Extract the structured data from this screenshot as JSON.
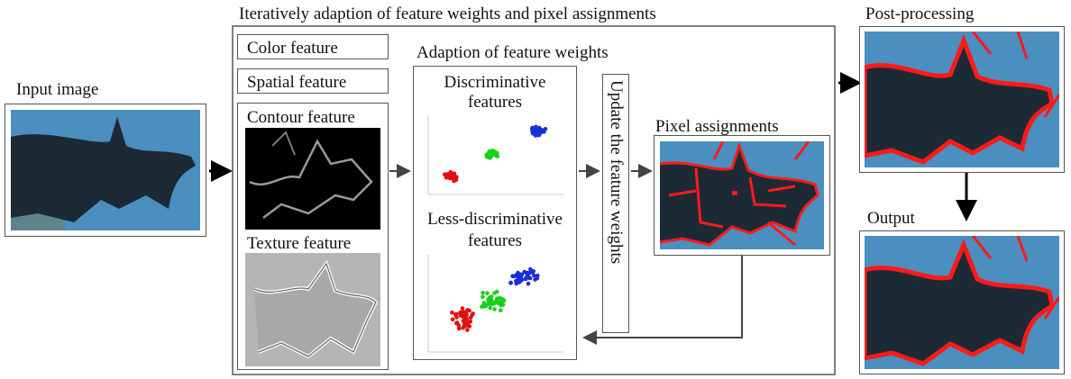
{
  "title": "Iteratively adaption of feature weights and pixel assignments",
  "input_image_label": "Input image",
  "features": {
    "color": "Color feature",
    "spatial": "Spatial feature",
    "contour": "Contour feature",
    "texture": "Texture feature"
  },
  "adaption": {
    "title": "Adaption of feature weights",
    "discriminative": "Discriminative features",
    "less_discriminative": "Less-discriminative features"
  },
  "update_label": "Update the feature weights",
  "pixel_assignments_label": "Pixel assignments",
  "post_processing_label": "Post-processing",
  "output_label": "Output",
  "colors": {
    "sky": "#4a8fbf",
    "object": "#1b2a35",
    "boundary": "#ff1a1a",
    "cluster_red": "#e01010",
    "cluster_green": "#18d018",
    "cluster_blue": "#1830d8"
  }
}
